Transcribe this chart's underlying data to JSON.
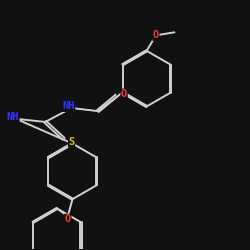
{
  "background": "#111111",
  "bond_color": "#d0d0d0",
  "bond_width": 1.4,
  "atom_colors": {
    "O": "#ff3333",
    "N": "#3333ff",
    "S": "#cccc00",
    "C": "#d0d0d0"
  },
  "font_size_atoms": 7.5
}
